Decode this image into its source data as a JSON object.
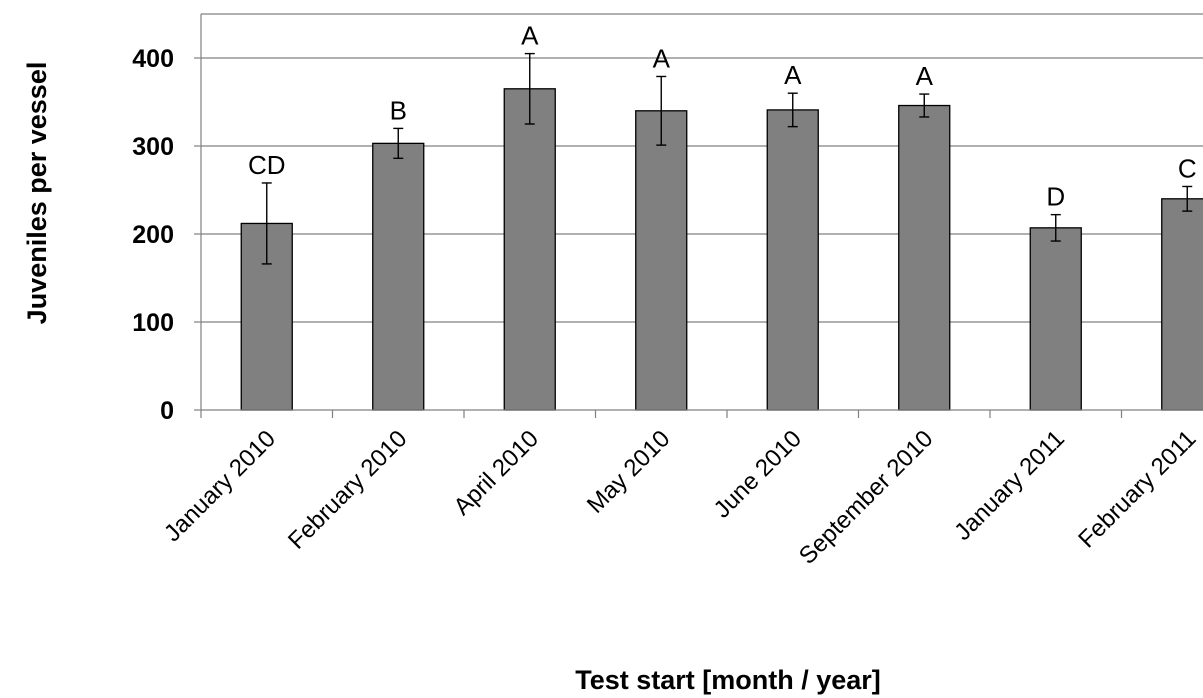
{
  "chart_data": {
    "type": "bar",
    "title": "",
    "xlabel": "Test start [month / year]",
    "ylabel": "Juveniles per vessel",
    "ylim": [
      0,
      400
    ],
    "yticks": [
      0,
      100,
      200,
      300,
      400
    ],
    "grid": true,
    "categories": [
      "January 2010",
      "February 2010",
      "April 2010",
      "May 2010",
      "June 2010",
      "September 2010",
      "January 2011",
      "February 2011"
    ],
    "values": [
      212,
      303,
      365,
      340,
      341,
      346,
      207,
      240
    ],
    "errors": [
      46,
      17,
      40,
      39,
      19,
      13,
      15,
      14
    ],
    "significance_labels": [
      "CD",
      "B",
      "A",
      "A",
      "A",
      "A",
      "D",
      "C"
    ],
    "colors": {
      "bar_fill": "#808080",
      "bar_stroke": "#000000",
      "grid": "#808080",
      "axis": "#808080"
    }
  }
}
